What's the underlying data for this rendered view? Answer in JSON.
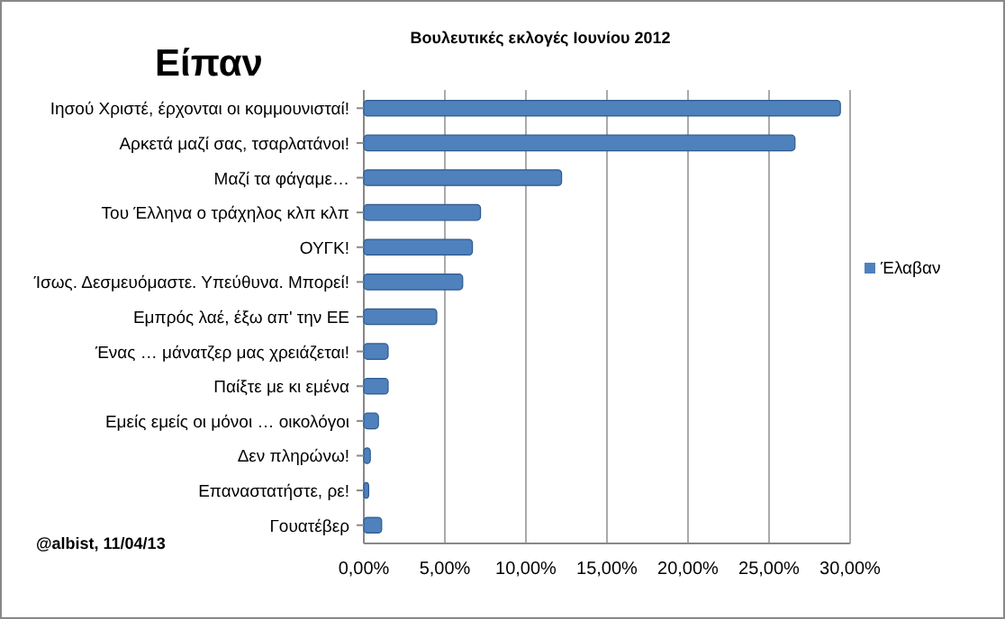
{
  "chart_data": {
    "type": "bar",
    "orientation": "horizontal",
    "title": "Είπαν",
    "subtitle": "Βουλευτικές εκλογές Ιουνίου 2012",
    "categories": [
      "Ιησού Χριστέ, έρχονται οι κομμουνισταί!",
      "Αρκετά μαζί σας, τσαρλατάνοι!",
      "Μαζί τα φάγαμε…",
      "Του Έλληνα ο τράχηλος κλπ κλπ",
      "ΟΥΓΚ!",
      "Ίσως. Δεσμευόμαστε. Υπεύθυνα. Μπορεί!",
      "Εμπρός λαέ, έξω απ' την ΕΕ",
      "Ένας … μάνατζερ μας χρειάζεται!",
      "Παίξτε με κι εμένα",
      "Εμείς εμείς οι μόνοι … οικολόγοι",
      "Δεν πληρώνω!",
      "Επαναστατήστε, ρε!",
      "Γουατέβερ"
    ],
    "series": [
      {
        "name": "Έλαβαν",
        "color": "#4f81bd",
        "values": [
          29.4,
          26.6,
          12.2,
          7.2,
          6.7,
          6.1,
          4.5,
          1.5,
          1.5,
          0.9,
          0.4,
          0.3,
          1.1
        ]
      }
    ],
    "xlim": [
      0,
      30
    ],
    "xticks": [
      {
        "value": 0,
        "label": "0,00%"
      },
      {
        "value": 5,
        "label": "5,00%"
      },
      {
        "value": 10,
        "label": "10,00%"
      },
      {
        "value": 15,
        "label": "15,00%"
      },
      {
        "value": 20,
        "label": "20,00%"
      },
      {
        "value": 25,
        "label": "25,00%"
      },
      {
        "value": 30,
        "label": "30,00%"
      }
    ],
    "grid": "x",
    "legend": "right",
    "annotations": [
      "@albist, 11/04/13"
    ]
  }
}
